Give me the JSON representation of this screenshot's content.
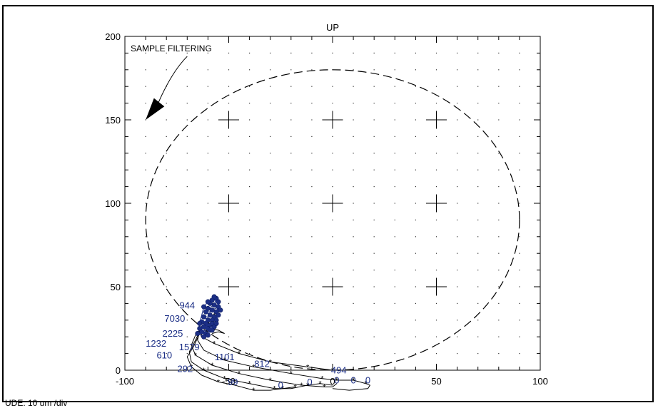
{
  "chart_data": {
    "type": "scatter",
    "top_label": "UP",
    "annotation": "SAMPLE FILTERING",
    "scale_note": "UDE: 10 um /div",
    "xlim": [
      -100,
      100
    ],
    "ylim": [
      0,
      200
    ],
    "x_ticks": [
      -100,
      -50,
      0,
      50,
      100
    ],
    "y_ticks": [
      0,
      50,
      100,
      150,
      200
    ],
    "x_tick_labels": [
      "-100",
      "-50",
      "0",
      "50",
      "100"
    ],
    "y_tick_labels": [
      "0",
      "50",
      "100",
      "150",
      "200"
    ],
    "grid": "dotted",
    "limit_circle": {
      "center": [
        0,
        90
      ],
      "rx": 90,
      "ry": 90
    },
    "cross_markers": [
      [
        -50,
        150
      ],
      [
        0,
        150
      ],
      [
        50,
        150
      ],
      [
        -50,
        100
      ],
      [
        0,
        100
      ],
      [
        50,
        100
      ],
      [
        -50,
        50
      ],
      [
        0,
        50
      ],
      [
        50,
        50
      ]
    ],
    "series_color": "#1c2f86",
    "point_labels": [
      {
        "text": "944",
        "x": -70,
        "y": 37
      },
      {
        "text": "7030",
        "x": -76,
        "y": 29
      },
      {
        "text": "2225",
        "x": -77,
        "y": 20
      },
      {
        "text": "1232",
        "x": -85,
        "y": 14
      },
      {
        "text": "1579",
        "x": -69,
        "y": 12
      },
      {
        "text": "610",
        "x": -81,
        "y": 7
      },
      {
        "text": "1101",
        "x": -52,
        "y": 6
      },
      {
        "text": "812",
        "x": -34,
        "y": 2
      },
      {
        "text": "292",
        "x": -71,
        "y": -1
      },
      {
        "text": "494",
        "x": 3,
        "y": -2
      },
      {
        "text": "99",
        "x": -48,
        "y": -9
      },
      {
        "text": "0",
        "x": -25,
        "y": -11
      },
      {
        "text": "0",
        "x": -11,
        "y": -9
      },
      {
        "text": "0",
        "x": 2,
        "y": -8
      },
      {
        "text": "0",
        "x": 10,
        "y": -8
      },
      {
        "text": "0",
        "x": 17,
        "y": -8
      }
    ],
    "trails": [
      [
        [
          -57,
          33
        ],
        [
          -60,
          28
        ],
        [
          -64,
          24
        ],
        [
          -63,
          20
        ],
        [
          -57,
          16
        ],
        [
          -45,
          10
        ],
        [
          -30,
          5
        ],
        [
          -12,
          2
        ],
        [
          0,
          0
        ]
      ],
      [
        [
          -60,
          30
        ],
        [
          -64,
          24
        ],
        [
          -65,
          18
        ],
        [
          -62,
          12
        ],
        [
          -52,
          6
        ],
        [
          -38,
          2
        ],
        [
          -20,
          -2
        ],
        [
          -5,
          -5
        ],
        [
          2,
          -6
        ],
        [
          10,
          -6
        ],
        [
          16,
          -8
        ],
        [
          18,
          -9
        ],
        [
          17,
          -11
        ],
        [
          8,
          -12
        ],
        [
          0,
          -11
        ]
      ],
      [
        [
          -62,
          27
        ],
        [
          -66,
          21
        ],
        [
          -68,
          15
        ],
        [
          -66,
          9
        ],
        [
          -58,
          3
        ],
        [
          -45,
          -2
        ],
        [
          -30,
          -6
        ],
        [
          -15,
          -9
        ],
        [
          -4,
          -10
        ],
        [
          0,
          -10
        ],
        [
          2,
          -8
        ]
      ],
      [
        [
          -63,
          26
        ],
        [
          -66,
          18
        ],
        [
          -69,
          11
        ],
        [
          -68,
          5
        ],
        [
          -62,
          0
        ],
        [
          -52,
          -5
        ],
        [
          -40,
          -8
        ],
        [
          -28,
          -11
        ],
        [
          -20,
          -11
        ],
        [
          -12,
          -9
        ],
        [
          -6,
          -8
        ],
        [
          0,
          -9
        ]
      ],
      [
        [
          -64,
          22
        ],
        [
          -67,
          14
        ],
        [
          -70,
          8
        ],
        [
          -68,
          2
        ],
        [
          -63,
          -3
        ],
        [
          -55,
          -7
        ],
        [
          -47,
          -9
        ],
        [
          -38,
          -12
        ],
        [
          -30,
          -12
        ],
        [
          -24,
          -11
        ],
        [
          -18,
          -10
        ]
      ],
      [
        [
          -58,
          22
        ],
        [
          -55,
          23
        ],
        [
          -52,
          22
        ],
        [
          -55,
          24
        ],
        [
          -60,
          25
        ]
      ]
    ],
    "markers": [
      [
        -57,
        33
      ],
      [
        -60,
        28
      ],
      [
        -64,
        24
      ],
      [
        -63,
        20
      ],
      [
        -57,
        16
      ],
      [
        -45,
        10
      ],
      [
        -30,
        5
      ],
      [
        -12,
        2
      ],
      [
        0,
        0
      ],
      [
        -52,
        6
      ],
      [
        -38,
        2
      ],
      [
        -20,
        -2
      ],
      [
        -5,
        -5
      ],
      [
        2,
        -6
      ],
      [
        10,
        -6
      ],
      [
        16,
        -8
      ],
      [
        -66,
        9
      ],
      [
        -58,
        3
      ],
      [
        -45,
        -2
      ],
      [
        -30,
        -6
      ],
      [
        -15,
        -9
      ],
      [
        -4,
        -10
      ],
      [
        -62,
        0
      ],
      [
        -52,
        -5
      ],
      [
        -40,
        -8
      ],
      [
        -28,
        -11
      ],
      [
        -12,
        -9
      ],
      [
        -6,
        -8
      ],
      [
        -68,
        2
      ],
      [
        -55,
        -7
      ],
      [
        -38,
        -12
      ],
      [
        -24,
        -11
      ],
      [
        -18,
        -10
      ]
    ],
    "cluster": [
      [
        -58,
        42
      ],
      [
        -59,
        40
      ],
      [
        -56,
        43
      ],
      [
        -57,
        39
      ],
      [
        -60,
        37
      ],
      [
        -58,
        36
      ],
      [
        -55,
        38
      ],
      [
        -56,
        35
      ],
      [
        -61,
        35
      ],
      [
        -59,
        33
      ],
      [
        -57,
        32
      ],
      [
        -62,
        32
      ],
      [
        -60,
        30
      ],
      [
        -58,
        30
      ],
      [
        -55,
        33
      ],
      [
        -56,
        30
      ],
      [
        -63,
        29
      ],
      [
        -61,
        28
      ],
      [
        -59,
        27
      ],
      [
        -62,
        26
      ],
      [
        -60,
        25
      ],
      [
        -64,
        25
      ],
      [
        -58,
        28
      ],
      [
        -57,
        26
      ],
      [
        -63,
        23
      ],
      [
        -61,
        22
      ],
      [
        -65,
        22
      ],
      [
        -62,
        20
      ],
      [
        -60,
        21
      ],
      [
        -59,
        24
      ],
      [
        -56,
        28
      ],
      [
        -55,
        41
      ],
      [
        -54,
        36
      ],
      [
        -57,
        44
      ],
      [
        -60,
        41
      ],
      [
        -62,
        38
      ],
      [
        -64,
        28
      ],
      [
        -58,
        24
      ]
    ]
  }
}
